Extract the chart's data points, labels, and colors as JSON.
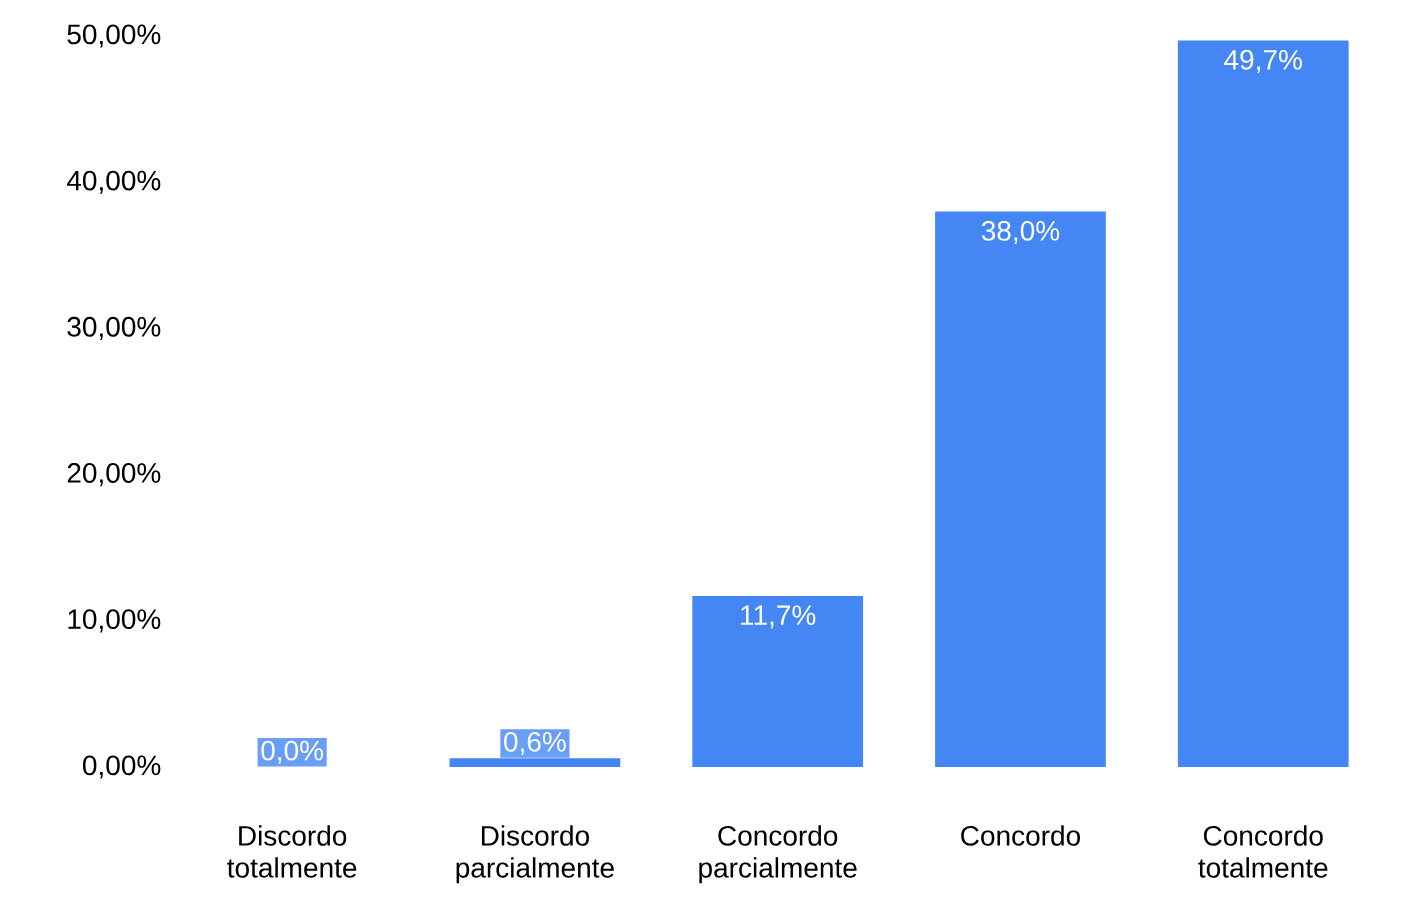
{
  "chart_data": {
    "type": "bar",
    "categories": [
      "Discordo totalmente",
      "Discordo parcialmente",
      "Concordo parcialmente",
      "Concordo",
      "Concordo totalmente"
    ],
    "values": [
      0.0,
      0.6,
      11.7,
      38.0,
      49.7
    ],
    "value_labels": [
      "0,0%",
      "0,6%",
      "11,7%",
      "38,0%",
      "49,7%"
    ],
    "color": "#4486f4",
    "ylim": [
      0,
      50
    ],
    "yticks": [
      {
        "value": 0,
        "label": "0,00%"
      },
      {
        "value": 10,
        "label": "10,00%"
      },
      {
        "value": 20,
        "label": "20,00%"
      },
      {
        "value": 30,
        "label": "30,00%"
      },
      {
        "value": 40,
        "label": "40,00%"
      },
      {
        "value": 50,
        "label": "50,00%"
      }
    ],
    "grid": false
  }
}
